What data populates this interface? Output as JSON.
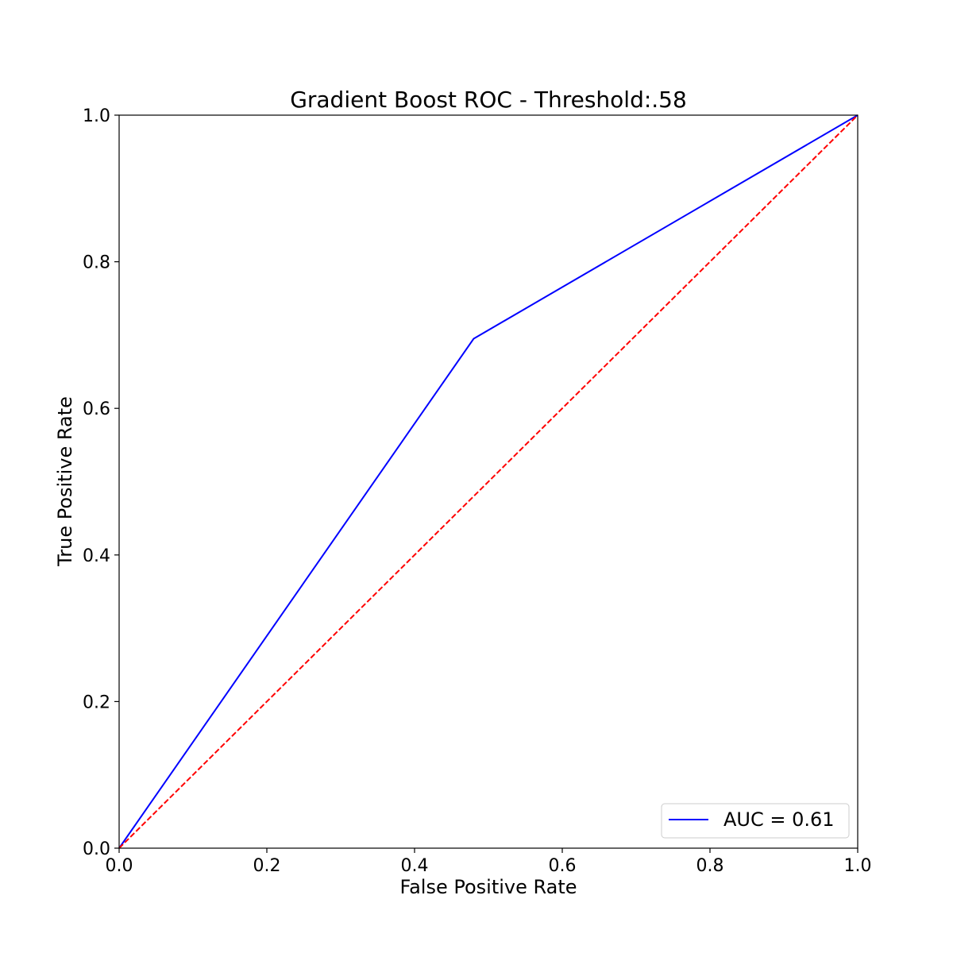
{
  "chart_data": {
    "type": "line",
    "title": "Gradient Boost ROC - Threshold:.58",
    "xlabel": "False Positive Rate",
    "ylabel": "True Positive Rate",
    "xlim": [
      0,
      1
    ],
    "ylim": [
      0,
      1
    ],
    "xticks": [
      "0.0",
      "0.2",
      "0.4",
      "0.6",
      "0.8",
      "1.0"
    ],
    "yticks": [
      "0.0",
      "0.2",
      "0.4",
      "0.6",
      "0.8",
      "1.0"
    ],
    "grid": false,
    "legend_position": "lower-right",
    "series": [
      {
        "name": "AUC = 0.61",
        "color": "#0000ff",
        "style": "solid",
        "x": [
          0.0,
          0.48,
          1.0
        ],
        "y": [
          0.0,
          0.695,
          1.0
        ]
      },
      {
        "color": "#ff0000",
        "style": "dashed",
        "x": [
          0.0,
          1.0
        ],
        "y": [
          0.0,
          1.0
        ]
      }
    ]
  }
}
